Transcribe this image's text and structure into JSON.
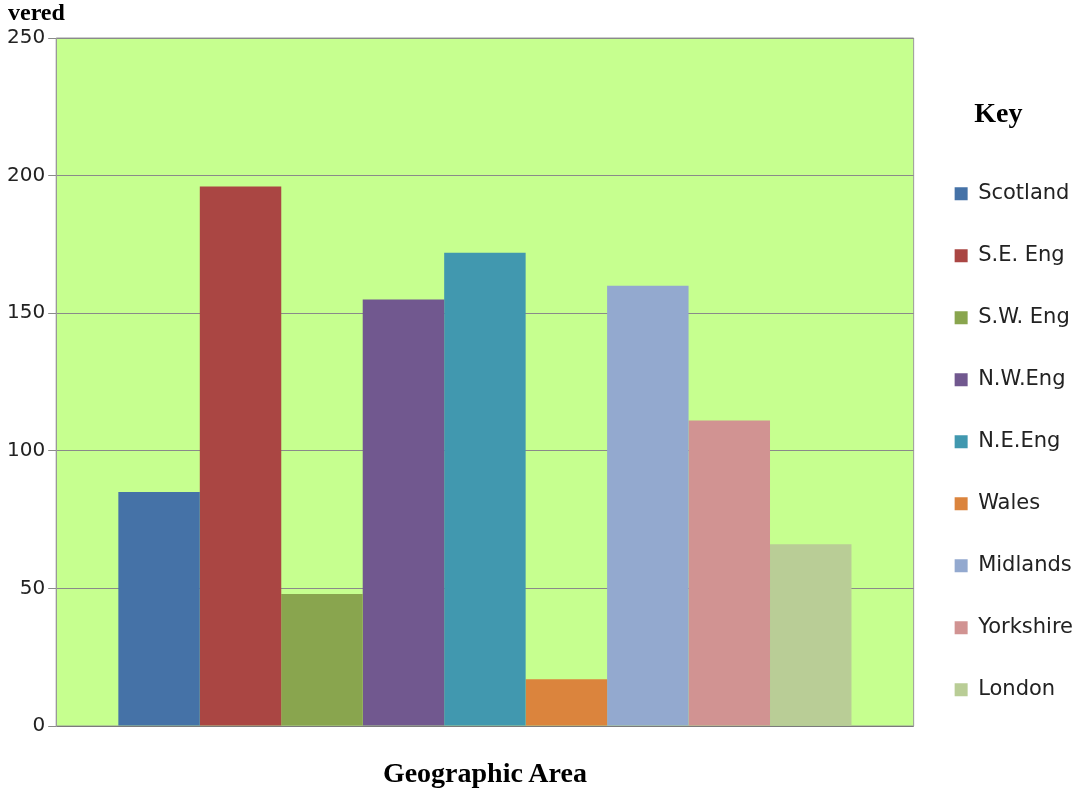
{
  "chart_data": {
    "type": "bar",
    "ylabel": "vered",
    "xlabel": "Geographic Area",
    "legend_title": "Key",
    "categories": [
      null
    ],
    "series": [
      {
        "name": "Scotland",
        "color": "#4572a7",
        "values": [
          85
        ]
      },
      {
        "name": "S.E. Eng",
        "color": "#aa4643",
        "values": [
          196
        ]
      },
      {
        "name": "S.W. Eng",
        "color": "#89a54e",
        "values": [
          48
        ]
      },
      {
        "name": "N.W.Eng",
        "color": "#71588f",
        "values": [
          155
        ]
      },
      {
        "name": "N.E.Eng",
        "color": "#4198af",
        "values": [
          172
        ]
      },
      {
        "name": "Wales",
        "color": "#db843d",
        "values": [
          17
        ]
      },
      {
        "name": "Midlands",
        "color": "#93a9cf",
        "values": [
          160
        ]
      },
      {
        "name": "Yorkshire",
        "color": "#d19392",
        "values": [
          111
        ]
      },
      {
        "name": "London",
        "color": "#b9cd96",
        "values": [
          66
        ]
      }
    ],
    "ylim": [
      0,
      250
    ],
    "yticks": [
      0,
      50,
      100,
      150,
      200,
      250
    ],
    "grid": "y",
    "legend": "right"
  }
}
